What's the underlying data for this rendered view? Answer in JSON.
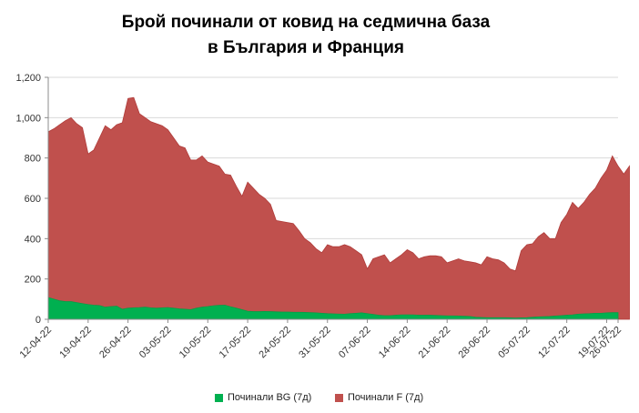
{
  "colors": {
    "bg": "#00B050",
    "fr": "#C0504D",
    "bg_edge": "#00A046",
    "fr_edge": "#B03C3A",
    "grid": "#D9D9D9"
  },
  "chart_data": {
    "type": "area",
    "title": "Брой починали  от ковид на седмична база",
    "subtitle": "в България  и Франция",
    "ylim": [
      0,
      1200
    ],
    "yticks": [
      "0",
      "200",
      "400",
      "600",
      "800",
      "1,000",
      "1,200"
    ],
    "ytick_values": [
      0,
      200,
      400,
      600,
      800,
      1000,
      1200
    ],
    "xtick_labels": [
      "12-04-22",
      "19-04-22",
      "26-04-22",
      "03-05-22",
      "10-05-22",
      "17-05-22",
      "24-05-22",
      "31-05-22",
      "07-06-22",
      "14-06-22",
      "21-06-22",
      "28-06-22",
      "05-07-22",
      "12-07-22",
      "19-07-22",
      "26-07-22"
    ],
    "x_start": "12-04-22",
    "x_step_days": 1,
    "legend": "bottom",
    "series": [
      {
        "name": "Починали BG (7д)",
        "values": [
          108,
          100,
          92,
          88,
          88,
          83,
          78,
          73,
          70,
          68,
          60,
          63,
          65,
          50,
          55,
          57,
          58,
          60,
          57,
          55,
          57,
          58,
          55,
          52,
          50,
          48,
          55,
          60,
          63,
          67,
          69,
          70,
          62,
          55,
          48,
          40,
          38,
          38,
          39,
          38,
          37,
          36,
          36,
          35,
          35,
          34,
          33,
          32,
          30,
          28,
          27,
          26,
          25,
          28,
          30,
          32,
          28,
          24,
          20,
          18,
          18,
          20,
          22,
          22,
          22,
          20,
          20,
          20,
          19,
          18,
          17,
          17,
          16,
          15,
          14,
          10,
          9,
          8,
          8,
          8,
          8,
          7,
          6,
          7,
          8,
          10,
          12,
          13,
          14,
          16,
          18,
          20,
          22,
          25,
          27,
          28,
          30,
          30,
          32,
          33,
          33
        ]
      },
      {
        "name": "Починали F (7д)",
        "values": [
          930,
          945,
          965,
          985,
          1000,
          970,
          950,
          820,
          840,
          900,
          960,
          940,
          965,
          975,
          1095,
          1100,
          1020,
          1000,
          980,
          970,
          960,
          940,
          900,
          860,
          850,
          790,
          790,
          810,
          780,
          770,
          760,
          720,
          715,
          660,
          610,
          680,
          650,
          620,
          600,
          570,
          490,
          485,
          480,
          475,
          440,
          400,
          380,
          350,
          330,
          370,
          360,
          360,
          370,
          360,
          340,
          320,
          250,
          300,
          310,
          320,
          280,
          300,
          320,
          345,
          330,
          300,
          310,
          315,
          315,
          310,
          280,
          290,
          300,
          290,
          285,
          280,
          270,
          310,
          300,
          295,
          280,
          250,
          240,
          340,
          370,
          375,
          410,
          430,
          400,
          400,
          480,
          520,
          580,
          550,
          580,
          620,
          650,
          700,
          740,
          810,
          760,
          720,
          760
        ]
      }
    ]
  }
}
